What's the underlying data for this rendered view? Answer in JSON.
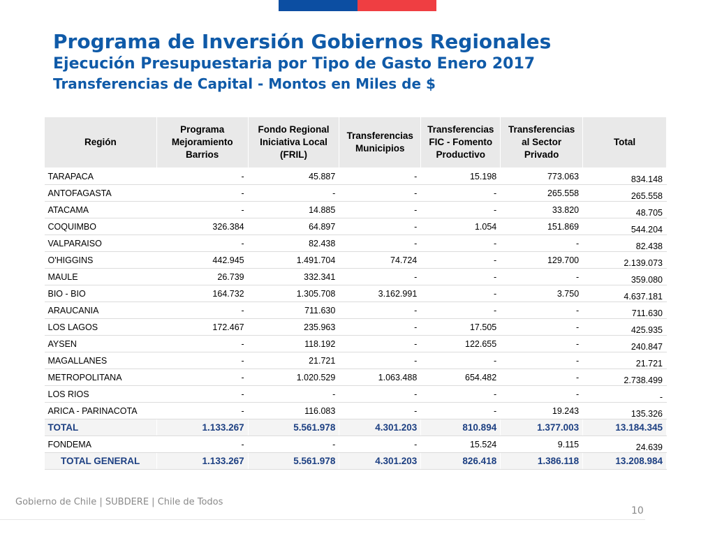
{
  "slide": {
    "title": "Programa de Inversión Gobiernos Regionales",
    "subtitle": "Ejecución Presupuestaria por Tipo de Gasto Enero 2017",
    "subtitle2": "Transferencias de Capital  - Montos en Miles de $",
    "footer": "Gobierno de Chile | SUBDERE | Chile de Todos",
    "page_number": "10",
    "colors": {
      "title": "#0f5aa8",
      "flag_blue": "#0c4ea2",
      "flag_red": "#ef3e42",
      "total_text": "#1c3f82"
    }
  },
  "table": {
    "headers": [
      "Región",
      "Programa Mejoramiento Barrios",
      "Fondo Regional Iniciativa Local (FRIL)",
      "Transferencias Municipios",
      "Transferencias FIC - Fomento Productivo",
      "Transferencias al Sector Privado",
      "Total"
    ],
    "rows": [
      [
        "TARAPACA",
        "-",
        "45.887",
        "-",
        "15.198",
        "773.063",
        "834.148"
      ],
      [
        "ANTOFAGASTA",
        "-",
        "-",
        "-",
        "-",
        "265.558",
        "265.558"
      ],
      [
        "ATACAMA",
        "-",
        "14.885",
        "-",
        "-",
        "33.820",
        "48.705"
      ],
      [
        "COQUIMBO",
        "326.384",
        "64.897",
        "-",
        "1.054",
        "151.869",
        "544.204"
      ],
      [
        "VALPARAISO",
        "-",
        "82.438",
        "-",
        "-",
        "-",
        "82.438"
      ],
      [
        "O'HIGGINS",
        "442.945",
        "1.491.704",
        "74.724",
        "-",
        "129.700",
        "2.139.073"
      ],
      [
        "MAULE",
        "26.739",
        "332.341",
        "-",
        "-",
        "-",
        "359.080"
      ],
      [
        "BIO - BIO",
        "164.732",
        "1.305.708",
        "3.162.991",
        "-",
        "3.750",
        "4.637.181"
      ],
      [
        "ARAUCANIA",
        "-",
        "711.630",
        "-",
        "-",
        "-",
        "711.630"
      ],
      [
        "LOS LAGOS",
        "172.467",
        "235.963",
        "-",
        "17.505",
        "-",
        "425.935"
      ],
      [
        "AYSEN",
        "-",
        "118.192",
        "-",
        "122.655",
        "-",
        "240.847"
      ],
      [
        "MAGALLANES",
        "-",
        "21.721",
        "-",
        "-",
        "-",
        "21.721"
      ],
      [
        "METROPOLITANA",
        "-",
        "1.020.529",
        "1.063.488",
        "654.482",
        "-",
        "2.738.499"
      ],
      [
        "LOS RIOS",
        "-",
        "-",
        "-",
        "-",
        "-",
        "-"
      ],
      [
        "ARICA - PARINACOTA",
        "-",
        "116.083",
        "-",
        "-",
        "19.243",
        "135.326"
      ]
    ],
    "total": [
      "TOTAL",
      "1.133.267",
      "5.561.978",
      "4.301.203",
      "810.894",
      "1.377.003",
      "13.184.345"
    ],
    "fondema": [
      "FONDEMA",
      "-",
      "-",
      "-",
      "15.524",
      "9.115",
      "24.639"
    ],
    "total_general": [
      "TOTAL GENERAL",
      "1.133.267",
      "5.561.978",
      "4.301.203",
      "826.418",
      "1.386.118",
      "13.208.984"
    ]
  }
}
